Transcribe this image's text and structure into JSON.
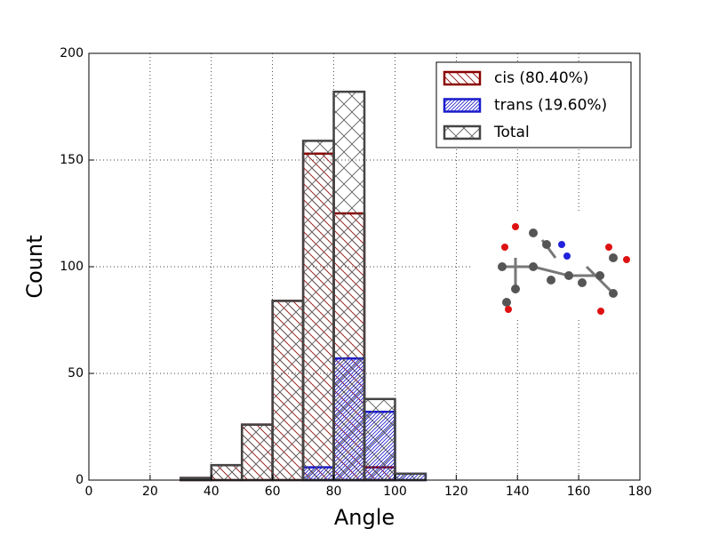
{
  "chart_data": {
    "type": "histogram",
    "xlabel": "Angle",
    "ylabel": "Count",
    "bins": [
      0,
      10,
      20,
      30,
      40,
      50,
      60,
      70,
      80,
      90,
      100,
      110,
      120,
      130,
      140,
      150,
      160,
      170,
      180
    ],
    "series": [
      {
        "name": "cis (80.40%)",
        "color": "#8b0000",
        "values": [
          0,
          0,
          0,
          1,
          7,
          26,
          84,
          153,
          125,
          6,
          0,
          0,
          0,
          0,
          0,
          0,
          0,
          0
        ]
      },
      {
        "name": "trans (19.60%)",
        "color": "#1a1acc",
        "values": [
          0,
          0,
          0,
          0,
          0,
          0,
          0,
          6,
          57,
          32,
          3,
          0,
          0,
          0,
          0,
          0,
          0,
          0
        ]
      },
      {
        "name": "Total",
        "color": "#444444",
        "values": [
          0,
          0,
          0,
          1,
          7,
          26,
          84,
          159,
          182,
          38,
          3,
          0,
          0,
          0,
          0,
          0,
          0,
          0
        ]
      }
    ],
    "xlim": [
      0,
      180
    ],
    "ylim": [
      0,
      200
    ],
    "xticks": [
      0,
      20,
      40,
      60,
      80,
      100,
      120,
      140,
      160,
      180
    ],
    "yticks": [
      0,
      50,
      100,
      150,
      200
    ],
    "grid": true,
    "legend": "upper right"
  }
}
